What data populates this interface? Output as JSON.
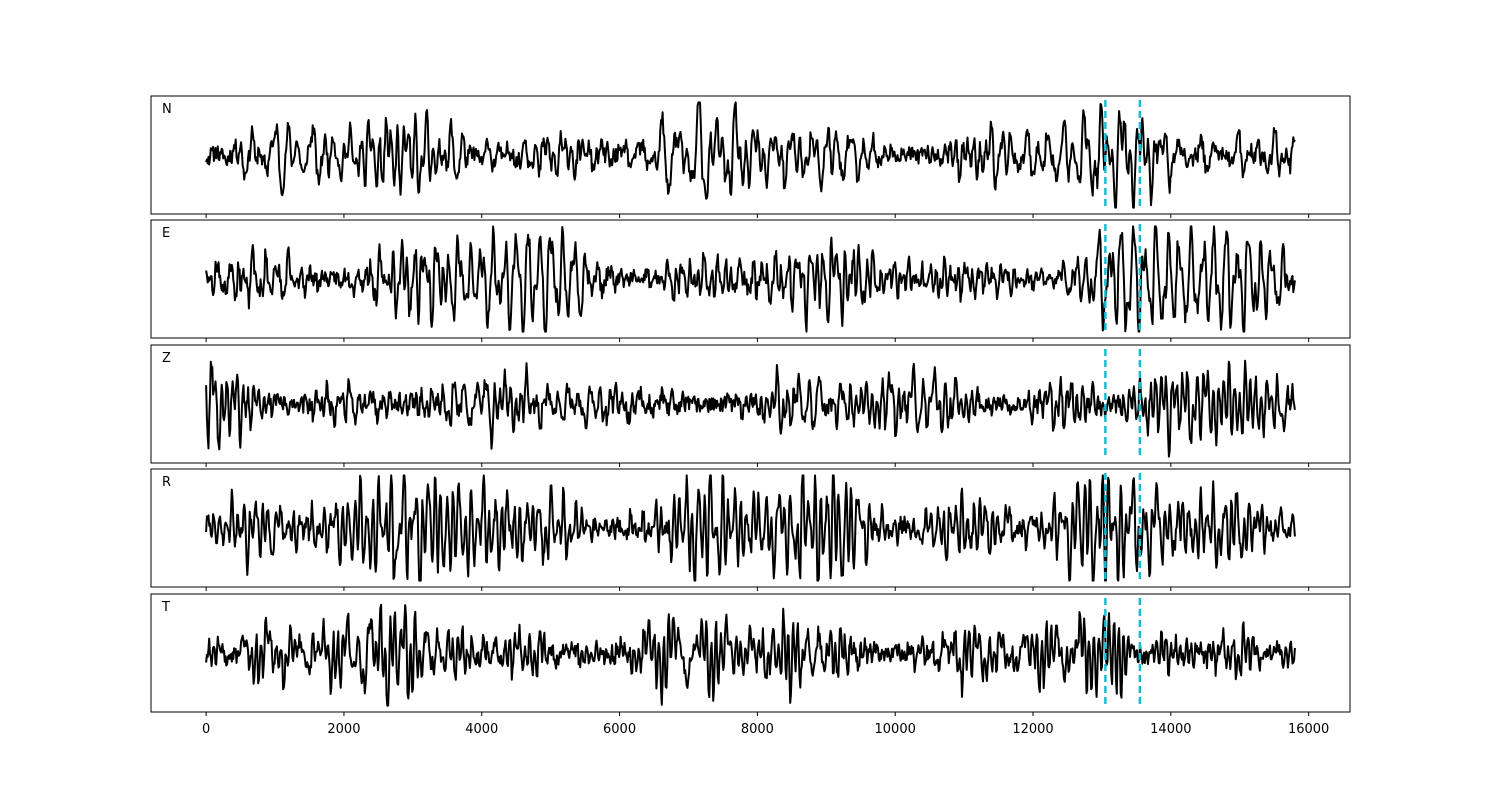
{
  "chart_data": {
    "type": "line",
    "panels": [
      {
        "label": "N",
        "seed": 11,
        "noise": [
          0.55,
          0.2,
          0.08
        ]
      },
      {
        "label": "E",
        "seed": 23,
        "noise": [
          0.55,
          0.2,
          0.08
        ]
      },
      {
        "label": "Z",
        "seed": 37,
        "noise": [
          0.55,
          0.2,
          0.08
        ]
      },
      {
        "label": "R",
        "seed": 41,
        "noise": [
          0.55,
          0.2,
          0.08
        ]
      },
      {
        "label": "T",
        "seed": 59,
        "noise": [
          0.55,
          0.2,
          0.08
        ]
      }
    ],
    "x_range": [
      0,
      15800
    ],
    "xlim": [
      -800,
      16600
    ],
    "ylim": [
      -1.1,
      1.1
    ],
    "x_ticks": [
      0,
      2000,
      4000,
      6000,
      8000,
      10000,
      12000,
      14000,
      16000
    ],
    "x_tick_labels": [
      "0",
      "2000",
      "4000",
      "6000",
      "8000",
      "10000",
      "12000",
      "14000",
      "16000"
    ],
    "markers": [
      13050,
      13550
    ],
    "colors": {
      "trace": "#000000",
      "marker": "#17becf",
      "frame": "#000000"
    },
    "grid": false,
    "legend": "none"
  }
}
